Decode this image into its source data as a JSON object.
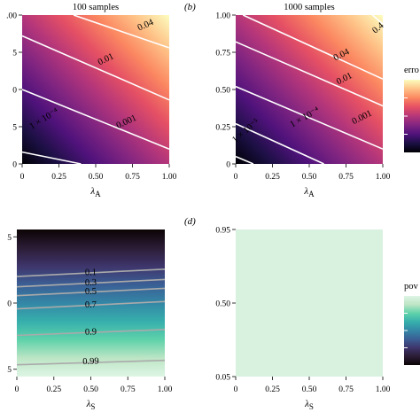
{
  "colors": {
    "magma": [
      "#000004",
      "#1c1044",
      "#4f127b",
      "#812581",
      "#b5367a",
      "#e55064",
      "#fb8761",
      "#fec287",
      "#fcfdbf"
    ],
    "mako": [
      "#0b0405",
      "#2b1c35",
      "#3e356b",
      "#3b5f95",
      "#3487a6",
      "#36afac",
      "#5fd2aa",
      "#bde5c5",
      "#def5e5"
    ],
    "contour_light": "#ffffff",
    "contour_dark": "#aaaaaa"
  },
  "chart_data": [
    {
      "panel": "",
      "type": "heatmap",
      "title": "100 samples",
      "xlabel": "λ",
      "xlabel_sub": "A",
      "x_ticks": [
        "0",
        "0.25",
        "0.50",
        "0.75",
        "1.00"
      ],
      "x_tick_values": [
        0,
        0.25,
        0.5,
        0.75,
        1.0
      ],
      "y_ticks": [
        "0",
        "5",
        "0",
        "5",
        ".00"
      ],
      "y_tick_values": [
        0,
        0.25,
        0.5,
        0.75,
        1.0
      ],
      "xlim": [
        0,
        1
      ],
      "ylim": [
        0,
        1
      ],
      "colormap": "magma",
      "gradient": "diagonal",
      "contours": [
        {
          "label": "0.04",
          "line": [
            [
              0.35,
              1.0
            ],
            [
              1.0,
              0.78
            ]
          ],
          "label_at": [
            0.84,
            0.93
          ],
          "angle": -24
        },
        {
          "label": "0.01",
          "line": [
            [
              0.0,
              0.86
            ],
            [
              1.0,
              0.43
            ]
          ],
          "label_at": [
            0.57,
            0.7
          ],
          "angle": -26
        },
        {
          "label": "0.001",
          "line": [
            [
              0.0,
              0.5
            ],
            [
              1.0,
              0.1
            ]
          ],
          "label_at": [
            0.71,
            0.28
          ],
          "angle": -25
        },
        {
          "label": "1 × 10⁻⁴",
          "line": [
            [
              0.0,
              0.08
            ],
            [
              0.4,
              0.0
            ]
          ],
          "label_at": [
            0.15,
            0.3
          ],
          "angle": -32
        }
      ]
    },
    {
      "panel": "(b)",
      "type": "heatmap",
      "title": "1000 samples",
      "xlabel": "λ",
      "xlabel_sub": "A",
      "x_ticks": [
        "0",
        "0.25",
        "0.50",
        "0.75",
        "1.00"
      ],
      "x_tick_values": [
        0,
        0.25,
        0.5,
        0.75,
        1.0
      ],
      "y_ticks": [
        "0",
        "0.25",
        "0.50",
        "0.75",
        "1.00"
      ],
      "y_tick_values": [
        0,
        0.25,
        0.5,
        0.75,
        1.0
      ],
      "xlim": [
        0,
        1
      ],
      "ylim": [
        0,
        1
      ],
      "colormap": "magma",
      "gradient": "diagonal",
      "colorbar_title": "erro",
      "contours": [
        {
          "label": "0.4",
          "line": [
            [
              0.93,
              1.0
            ],
            [
              1.0,
              0.94
            ]
          ],
          "label_at": [
            0.97,
            0.91
          ],
          "angle": -40
        },
        {
          "label": "0.04",
          "line": [
            [
              0.05,
              1.0
            ],
            [
              1.0,
              0.57
            ]
          ],
          "label_at": [
            0.72,
            0.73
          ],
          "angle": -27
        },
        {
          "label": "0.01",
          "line": [
            [
              0.0,
              0.82
            ],
            [
              1.0,
              0.39
            ]
          ],
          "label_at": [
            0.74,
            0.57
          ],
          "angle": -27
        },
        {
          "label": "0.001",
          "line": [
            [
              0.0,
              0.52
            ],
            [
              1.0,
              0.1
            ]
          ],
          "label_at": [
            0.86,
            0.31
          ],
          "angle": -27
        },
        {
          "label": "1 × 10⁻⁴",
          "line": [
            [
              0.0,
              0.27
            ],
            [
              0.6,
              0.0
            ]
          ],
          "label_at": [
            0.47,
            0.31
          ],
          "angle": -30
        },
        {
          "label": "1 × 10⁻⁵",
          "line": [
            [
              0.0,
              0.05
            ],
            [
              0.12,
              0.0
            ]
          ],
          "label_at": [
            0.07,
            0.22
          ],
          "angle": -40
        }
      ]
    },
    {
      "panel": "",
      "type": "heatmap",
      "title": "",
      "xlabel": "λ",
      "xlabel_sub": "S",
      "x_ticks": [
        "0",
        "0.25",
        "0.50",
        "0.75",
        "1.00"
      ],
      "x_tick_values": [
        0,
        0.25,
        0.5,
        0.75,
        1.0
      ],
      "y_ticks": [
        "5",
        "0",
        "5"
      ],
      "y_tick_values": [
        0.95,
        0.5,
        0.05
      ],
      "xlim": [
        0,
        1
      ],
      "ylim": [
        0.0,
        1.0
      ],
      "colormap": "mako",
      "gradient": "vertical",
      "contours": [
        {
          "label": "0.1",
          "line": [
            [
              0.0,
              0.68
            ],
            [
              1.0,
              0.73
            ]
          ],
          "label_at": [
            0.5,
            0.705
          ],
          "angle": -2
        },
        {
          "label": "0.3",
          "line": [
            [
              0.0,
              0.61
            ],
            [
              1.0,
              0.66
            ]
          ],
          "label_at": [
            0.5,
            0.635
          ],
          "angle": -2
        },
        {
          "label": "0.5",
          "line": [
            [
              0.0,
              0.55
            ],
            [
              1.0,
              0.6
            ]
          ],
          "label_at": [
            0.5,
            0.575
          ],
          "angle": -2
        },
        {
          "label": "0.7",
          "line": [
            [
              0.0,
              0.46
            ],
            [
              1.0,
              0.51
            ]
          ],
          "label_at": [
            0.5,
            0.485
          ],
          "angle": -2
        },
        {
          "label": "0.9",
          "line": [
            [
              0.0,
              0.28
            ],
            [
              1.0,
              0.32
            ]
          ],
          "label_at": [
            0.5,
            0.3
          ],
          "angle": -2
        },
        {
          "label": "0.99",
          "line": [
            [
              0.0,
              0.08
            ],
            [
              1.0,
              0.11
            ]
          ],
          "label_at": [
            0.5,
            0.1
          ],
          "angle": -2
        }
      ]
    },
    {
      "panel": "(d)",
      "type": "heatmap",
      "title": "",
      "xlabel": "λ",
      "xlabel_sub": "S",
      "x_ticks": [
        "0",
        "0.25",
        "0.50",
        "0.75",
        "1.00"
      ],
      "x_tick_values": [
        0,
        0.25,
        0.5,
        0.75,
        1.0
      ],
      "y_ticks": [
        "0.95",
        "0.50",
        "0.05"
      ],
      "y_tick_values": [
        0.95,
        0.5,
        0.05
      ],
      "xlim": [
        0,
        1
      ],
      "ylim": [
        0.05,
        0.95
      ],
      "colormap": "mako",
      "gradient": "uniform",
      "fill_value": 0.98,
      "colorbar_title": "pov",
      "contours": []
    }
  ]
}
